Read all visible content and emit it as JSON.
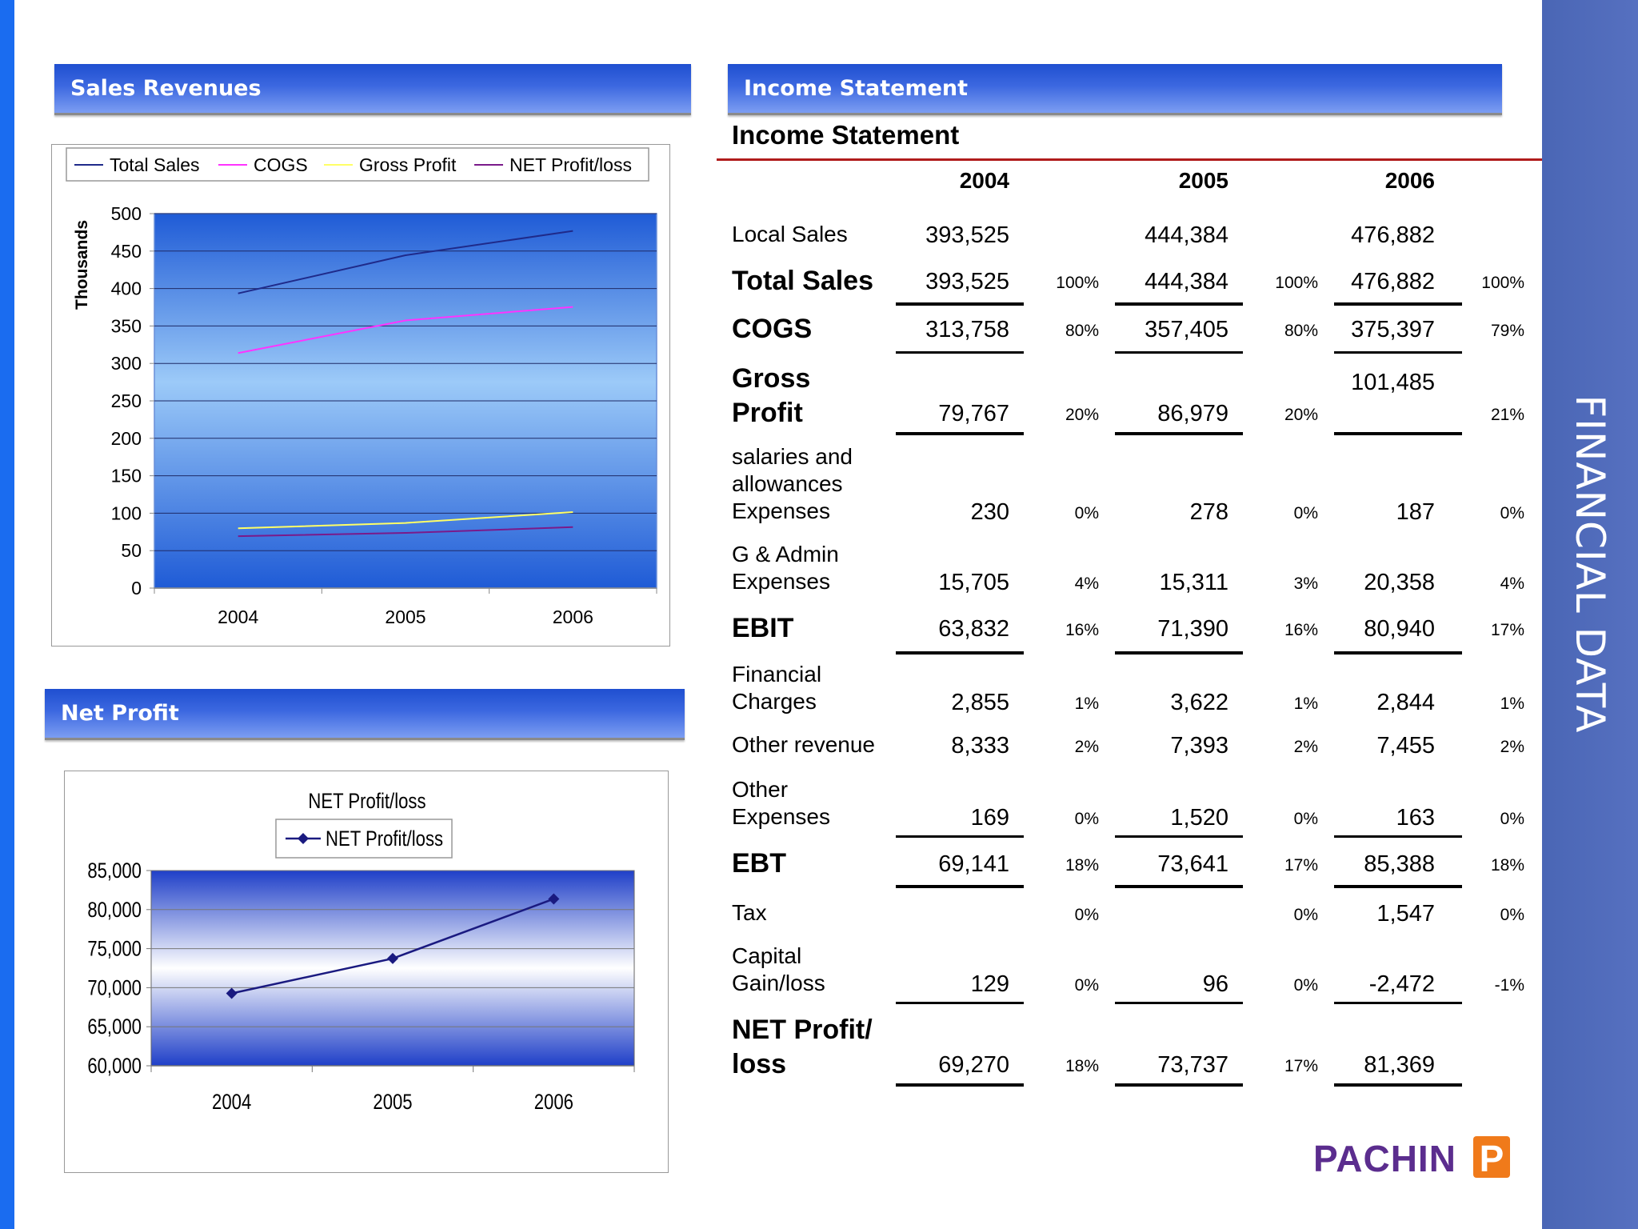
{
  "side_title": "FINANCIAL DATA",
  "sections": {
    "sales": "Sales Revenues",
    "income": "Income Statement",
    "net": "Net Profit"
  },
  "logo": {
    "text": "PACHIN",
    "mark": "P",
    "color": "#5b2d8e",
    "accent": "#f07a1a"
  },
  "colors": {
    "header_blue": "#2f5ed8",
    "side_band": "#4f6bbb",
    "left_stripe": "#1a6cf0"
  },
  "chart_data": [
    {
      "type": "line",
      "title": "",
      "ylabel": "Thousands",
      "xlabel": "",
      "categories": [
        "2004",
        "2005",
        "2006"
      ],
      "ylim": [
        0,
        500
      ],
      "yticks": [
        "0",
        "50",
        "100",
        "150",
        "200",
        "250",
        "300",
        "350",
        "400",
        "450",
        "500"
      ],
      "legend_position": "top",
      "grid": true,
      "series": [
        {
          "name": "Total Sales",
          "values": [
            393.5,
            444.4,
            476.9
          ],
          "color": "#1f2a8a"
        },
        {
          "name": "COGS",
          "values": [
            313.8,
            357.4,
            375.4
          ],
          "color": "#ff33ff"
        },
        {
          "name": "Gross Profit",
          "values": [
            79.8,
            87.0,
            101.5
          ],
          "color": "#ffff66"
        },
        {
          "name": "NET Profit/loss",
          "values": [
            69.3,
            73.7,
            81.4
          ],
          "color": "#7a1a8a"
        }
      ]
    },
    {
      "type": "line",
      "title": "NET Profit/loss",
      "xlabel": "",
      "ylabel": "",
      "categories": [
        "2004",
        "2005",
        "2006"
      ],
      "ylim": [
        60000,
        85000
      ],
      "yticks": [
        "60,000",
        "65,000",
        "70,000",
        "75,000",
        "80,000",
        "85,000"
      ],
      "legend_position": "top",
      "grid": true,
      "series": [
        {
          "name": "NET Profit/loss",
          "values": [
            69270,
            73737,
            81369
          ],
          "color": "#1a1a80"
        }
      ]
    }
  ],
  "income_statement": {
    "title": "Income Statement",
    "years": [
      "2004",
      "2005",
      "2006"
    ],
    "rows": [
      {
        "label": "Local Sales",
        "bold": false,
        "values": [
          "393,525",
          "444,384",
          "476,882"
        ],
        "pcts": [
          "",
          "",
          ""
        ],
        "rule": ""
      },
      {
        "label": "Total Sales",
        "bold": true,
        "values": [
          "393,525",
          "444,384",
          "476,882"
        ],
        "pcts": [
          "100%",
          "100%",
          "100%"
        ],
        "rule": "thick"
      },
      {
        "label": "COGS",
        "bold": true,
        "values": [
          "313,758",
          "357,405",
          "375,397"
        ],
        "pcts": [
          "80%",
          "80%",
          "79%"
        ],
        "rule": "thin"
      },
      {
        "label": "Gross Profit",
        "bold": true,
        "values": [
          "79,767",
          "86,979",
          "101,485"
        ],
        "pcts": [
          "20%",
          "20%",
          "21%"
        ],
        "rule": "thick"
      },
      {
        "label": "salaries and allowances Expenses",
        "bold": false,
        "values": [
          "230",
          "278",
          "187"
        ],
        "pcts": [
          "0%",
          "0%",
          "0%"
        ],
        "rule": ""
      },
      {
        "label": "G & Admin Expenses",
        "bold": false,
        "values": [
          "15,705",
          "15,311",
          "20,358"
        ],
        "pcts": [
          "4%",
          "3%",
          "4%"
        ],
        "rule": ""
      },
      {
        "label": "EBIT",
        "bold": true,
        "values": [
          "63,832",
          "71,390",
          "80,940"
        ],
        "pcts": [
          "16%",
          "16%",
          "17%"
        ],
        "rule": "thick"
      },
      {
        "label": "Financial Charges",
        "bold": false,
        "values": [
          "2,855",
          "3,622",
          "2,844"
        ],
        "pcts": [
          "1%",
          "1%",
          "1%"
        ],
        "rule": ""
      },
      {
        "label": "Other revenue",
        "bold": false,
        "values": [
          "8,333",
          "7,393",
          "7,455"
        ],
        "pcts": [
          "2%",
          "2%",
          "2%"
        ],
        "rule": ""
      },
      {
        "label": "Other Expenses",
        "bold": false,
        "values": [
          "169",
          "1,520",
          "163"
        ],
        "pcts": [
          "0%",
          "0%",
          "0%"
        ],
        "rule": "thin"
      },
      {
        "label": "EBT",
        "bold": true,
        "values": [
          "69,141",
          "73,641",
          "85,388"
        ],
        "pcts": [
          "18%",
          "17%",
          "18%"
        ],
        "rule": "thick"
      },
      {
        "label": "Tax",
        "bold": false,
        "values": [
          "",
          "",
          "1,547"
        ],
        "pcts": [
          "0%",
          "0%",
          "0%"
        ],
        "rule": ""
      },
      {
        "label": "Capital Gain/loss",
        "bold": false,
        "values": [
          "129",
          "96",
          "-2,472"
        ],
        "pcts": [
          "0%",
          "0%",
          "-1%"
        ],
        "rule": "thin"
      },
      {
        "label": "NET Profit/ loss",
        "bold": true,
        "values": [
          "69,270",
          "73,737",
          "81,369"
        ],
        "pcts": [
          "18%",
          "17%",
          ""
        ],
        "rule": "thick"
      }
    ]
  }
}
